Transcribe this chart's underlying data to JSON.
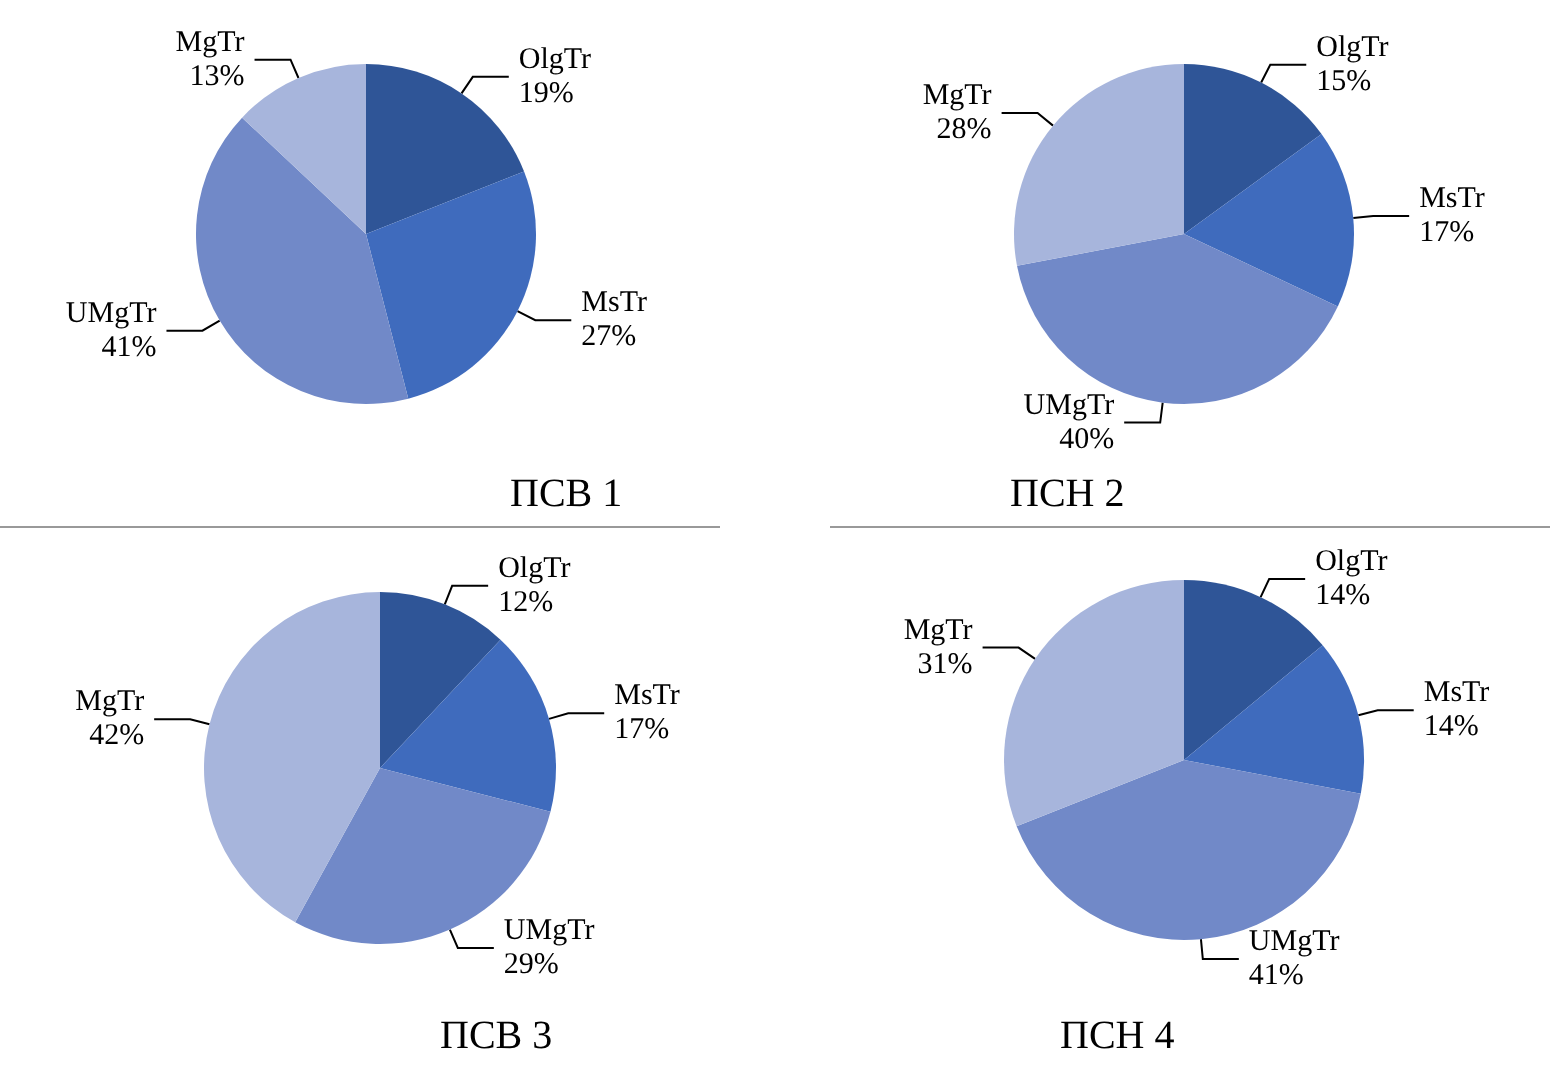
{
  "chart_data": [
    {
      "type": "pie",
      "title": "ПСВ 1",
      "categories": [
        "OlgTr",
        "MsTr",
        "UMgTr",
        "MgTr"
      ],
      "values": [
        19,
        27,
        41,
        13
      ],
      "value_labels": [
        "19%",
        "27%",
        "41%",
        "13%"
      ],
      "colors": [
        "#2f5597",
        "#3f6bbd",
        "#7189c8",
        "#a7b5dc"
      ]
    },
    {
      "type": "pie",
      "title": "ПСН 2",
      "categories": [
        "OlgTr",
        "MsTr",
        "UMgTr",
        "MgTr"
      ],
      "values": [
        15,
        17,
        40,
        28
      ],
      "value_labels": [
        "15%",
        "17%",
        "40%",
        "28%"
      ],
      "colors": [
        "#2f5597",
        "#3f6bbd",
        "#7189c8",
        "#a7b5dc"
      ]
    },
    {
      "type": "pie",
      "title": "ПСВ 3",
      "categories": [
        "OlgTr",
        "MsTr",
        "UMgTr",
        "MgTr"
      ],
      "values": [
        12,
        17,
        29,
        42
      ],
      "value_labels": [
        "12%",
        "17%",
        "29%",
        "42%"
      ],
      "colors": [
        "#2f5597",
        "#3f6bbd",
        "#7189c8",
        "#a7b5dc"
      ]
    },
    {
      "type": "pie",
      "title": "ПСН 4",
      "categories": [
        "OlgTr",
        "MsTr",
        "UMgTr",
        "MgTr"
      ],
      "values": [
        14,
        14,
        41,
        31
      ],
      "value_labels": [
        "14%",
        "14%",
        "41%",
        "31%"
      ],
      "colors": [
        "#2f5597",
        "#3f6bbd",
        "#7189c8",
        "#a7b5dc"
      ]
    }
  ]
}
